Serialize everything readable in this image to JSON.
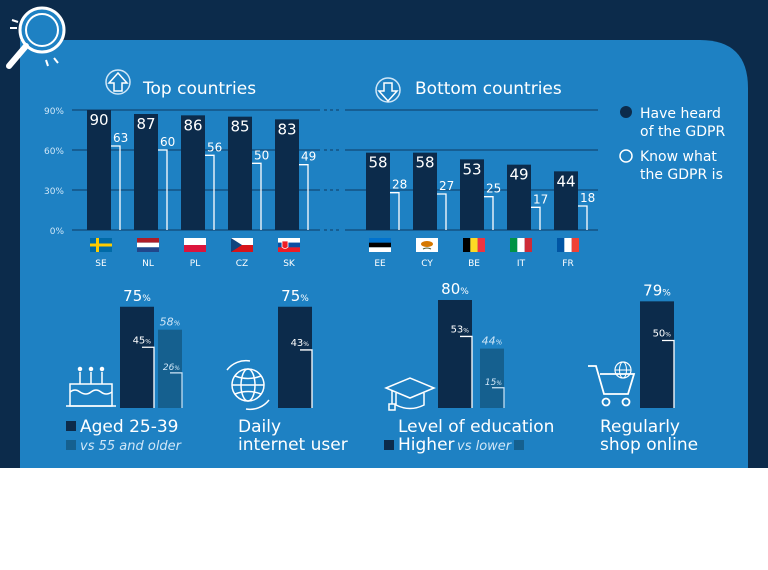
{
  "colors": {
    "navy_bg": "#0c2b4b",
    "panel": "#1e81c3",
    "bar_dark": "#0c2b4b",
    "bar_mid": "#15608f",
    "white": "#ffffff",
    "grid": "#0f3a63",
    "light_text": "#cfe6f7"
  },
  "icons": [
    "magnifier-icon",
    "arrow-up-icon",
    "arrow-down-icon",
    "birthday-cake-icon",
    "globe-icon",
    "graduation-cap-icon",
    "shopping-cart-icon"
  ],
  "chart_data": [
    {
      "type": "bar",
      "top_title": "Top countries",
      "bottom_title": "Bottom countries",
      "y_ticks": [
        "90%",
        "60%",
        "30%",
        "0%"
      ],
      "ylim": [
        0,
        90
      ],
      "legend": {
        "heard_line1": "Have heard",
        "heard_line2": "of the GDPR",
        "know_line1": "Know what",
        "know_line2": "the GDPR is"
      },
      "top": [
        {
          "country": "SE",
          "heard": 90,
          "know": 63,
          "flag": "sweden"
        },
        {
          "country": "NL",
          "heard": 87,
          "know": 60,
          "flag": "netherlands"
        },
        {
          "country": "PL",
          "heard": 86,
          "know": 56,
          "flag": "poland"
        },
        {
          "country": "CZ",
          "heard": 85,
          "know": 50,
          "flag": "czechia"
        },
        {
          "country": "SK",
          "heard": 83,
          "know": 49,
          "flag": "slovakia"
        }
      ],
      "bottom": [
        {
          "country": "EE",
          "heard": 58,
          "know": 28,
          "flag": "estonia"
        },
        {
          "country": "CY",
          "heard": 58,
          "know": 27,
          "flag": "cyprus"
        },
        {
          "country": "BE",
          "heard": 53,
          "know": 25,
          "flag": "belgium"
        },
        {
          "country": "IT",
          "heard": 49,
          "know": 17,
          "flag": "italy"
        },
        {
          "country": "FR",
          "heard": 44,
          "know": 18,
          "flag": "france"
        }
      ]
    },
    {
      "type": "bar",
      "label_line1": "Aged 25-39",
      "label_line2": "vs 55 and older",
      "group": {
        "heard": "75",
        "know": "45"
      },
      "compare": {
        "heard": "58",
        "know": "26"
      }
    },
    {
      "type": "bar",
      "label_line1": "Daily",
      "label_line2": "internet user",
      "group": {
        "heard": "75",
        "know": "43"
      }
    },
    {
      "type": "bar",
      "label_line1": "Level of education",
      "label_line2_a": "Higher",
      "label_line2_b": "vs lower",
      "group": {
        "heard": "80",
        "know": "53"
      },
      "compare": {
        "heard": "44",
        "know": "15"
      }
    },
    {
      "type": "bar",
      "label_line1": "Regularly",
      "label_line2": "shop online",
      "group": {
        "heard": "79",
        "know": "50"
      }
    }
  ],
  "pct": "%"
}
